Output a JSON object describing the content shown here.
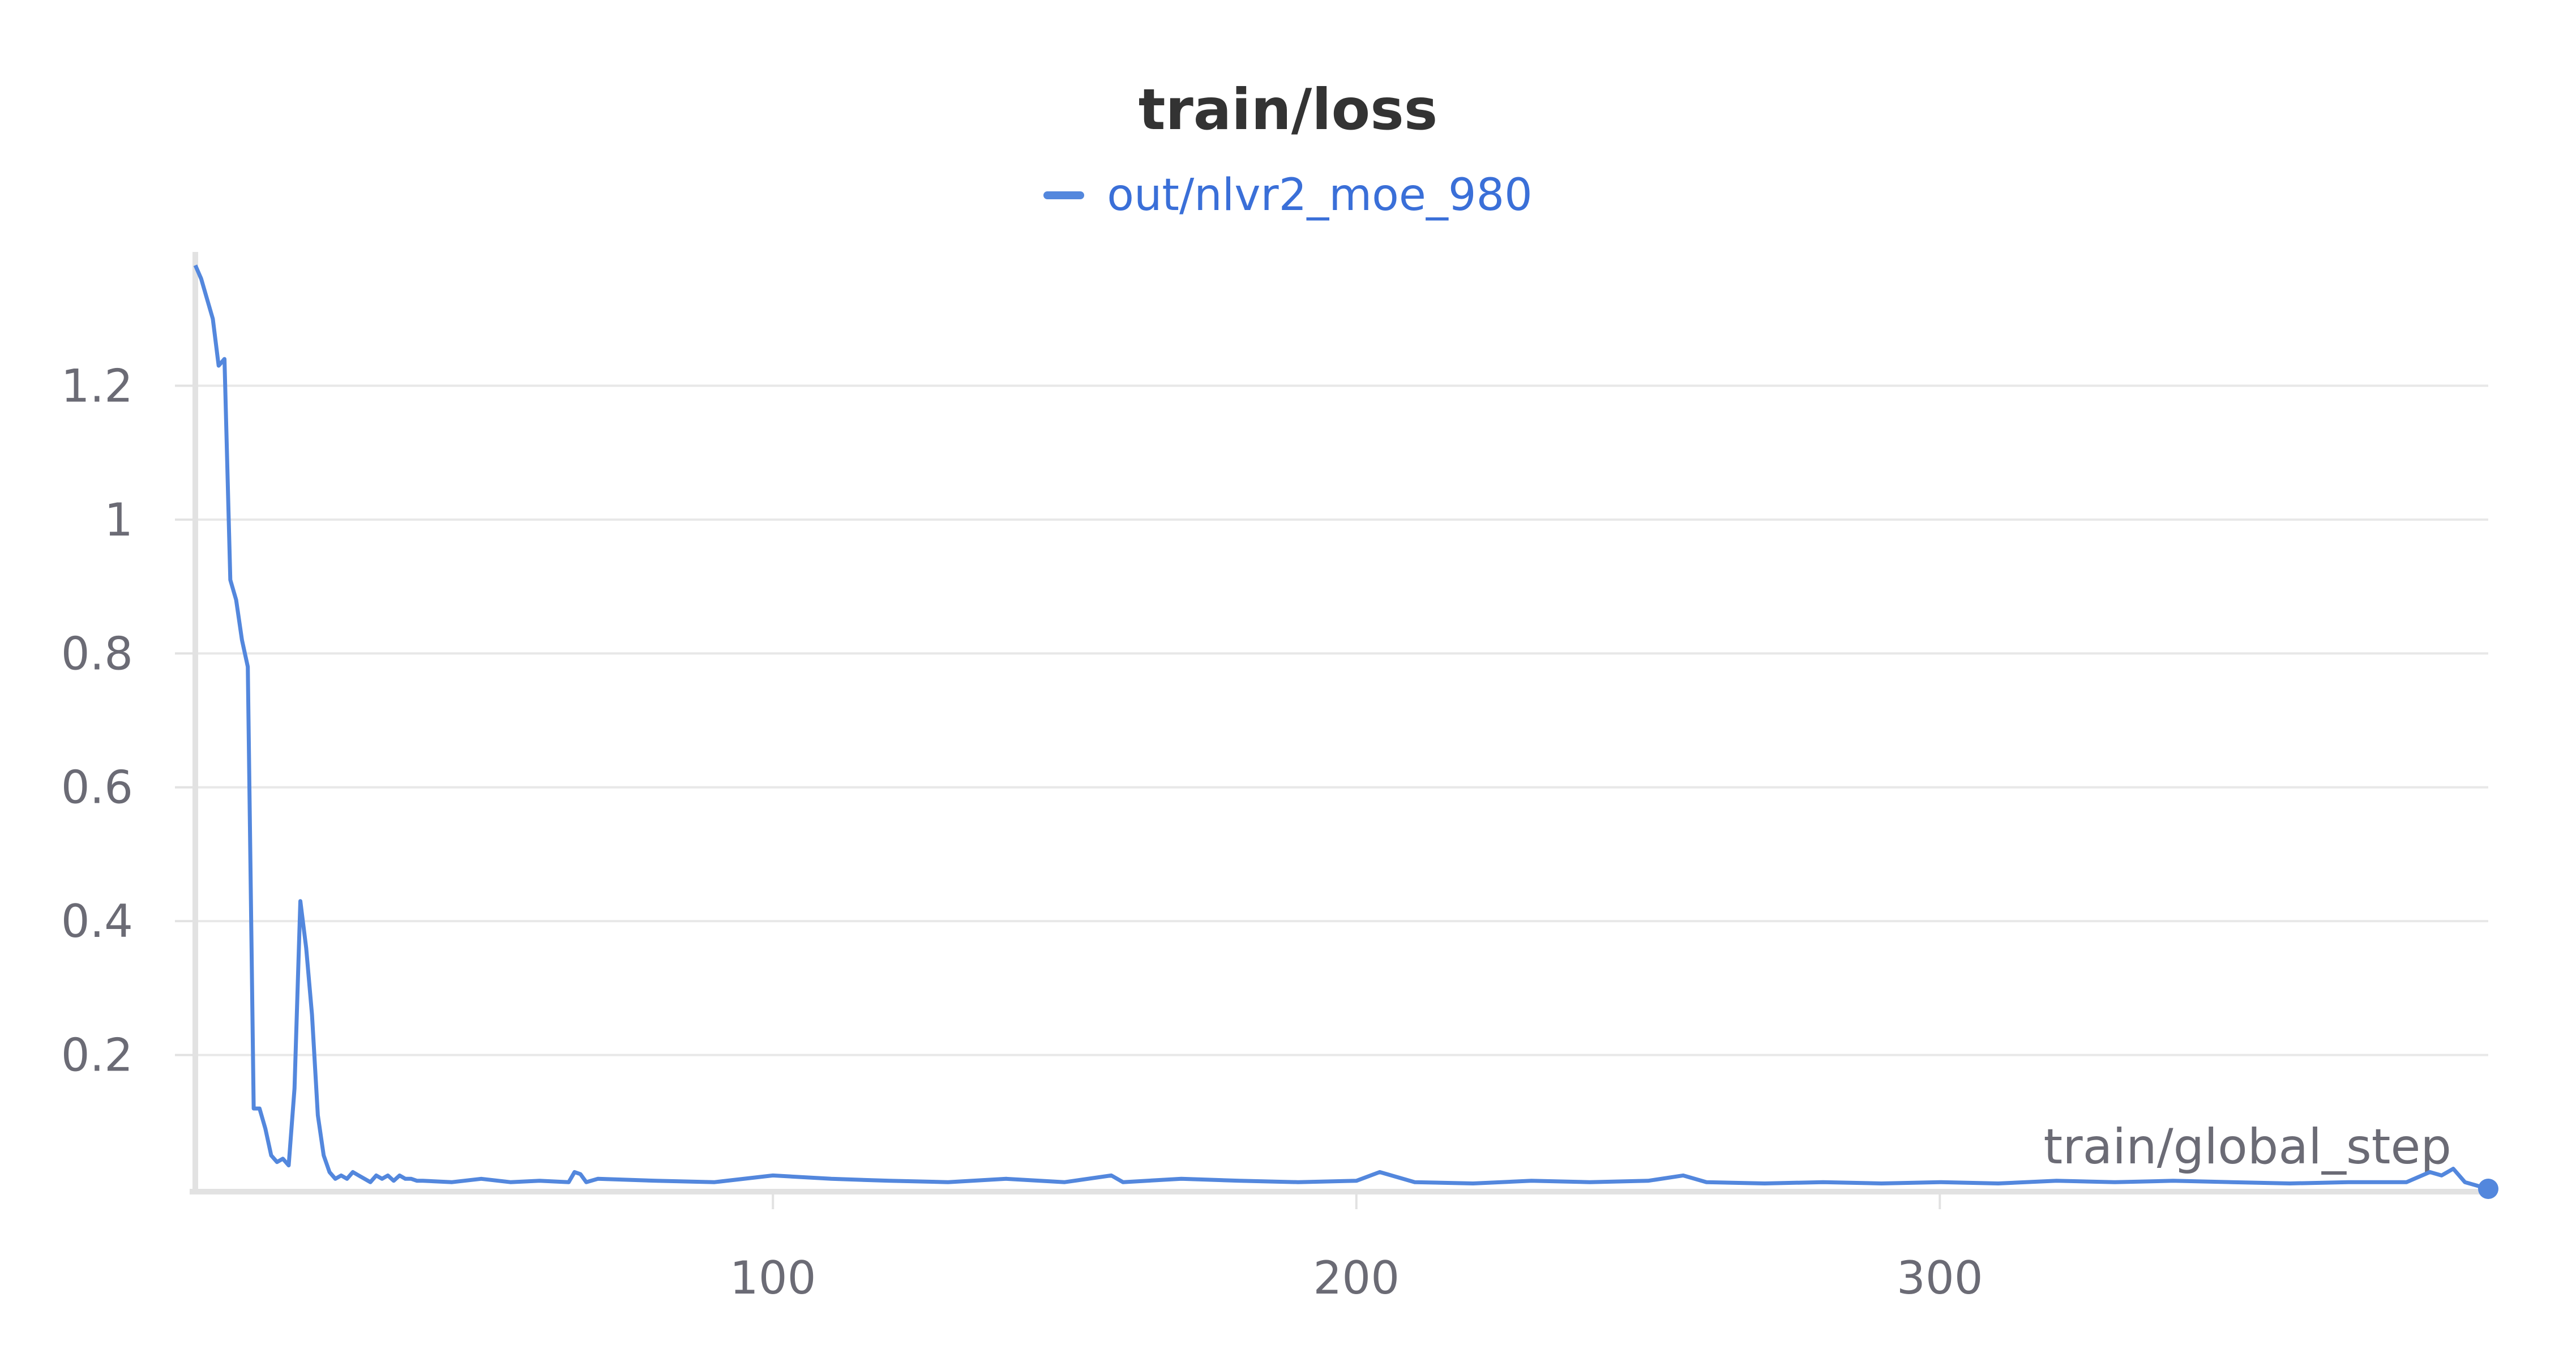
{
  "chart_data": {
    "type": "line",
    "title": "train/loss",
    "xlabel": "train/global_step",
    "ylabel": "",
    "xlim": [
      1,
      394
    ],
    "ylim": [
      0.0,
      1.4
    ],
    "xticks": [
      100,
      200,
      300
    ],
    "xtick_labels": [
      "100",
      "200",
      "300"
    ],
    "yticks": [
      0.2,
      0.4,
      0.6,
      0.8,
      1.0,
      1.2
    ],
    "ytick_labels": [
      "0.2",
      "0.4",
      "0.6",
      "0.8",
      "1",
      "1.2"
    ],
    "grid": true,
    "legend_position": "top-center",
    "series": [
      {
        "name": "out/nlvr2_moe_980",
        "color": "#5387dd",
        "x": [
          1,
          2,
          3,
          4,
          5,
          6,
          7,
          8,
          9,
          10,
          11,
          12,
          13,
          14,
          15,
          16,
          17,
          18,
          19,
          20,
          21,
          22,
          23,
          24,
          25,
          26,
          27,
          28,
          29,
          30,
          31,
          32,
          33,
          34,
          35,
          36,
          37,
          38,
          39,
          40,
          45,
          50,
          55,
          60,
          65,
          66,
          67,
          68,
          70,
          80,
          90,
          100,
          110,
          120,
          130,
          140,
          150,
          158,
          160,
          170,
          180,
          190,
          200,
          204,
          210,
          220,
          230,
          240,
          250,
          256,
          260,
          270,
          280,
          290,
          300,
          310,
          320,
          330,
          340,
          350,
          360,
          370,
          380,
          384,
          386,
          388,
          390,
          394
        ],
        "y": [
          1.38,
          1.36,
          1.33,
          1.3,
          1.23,
          1.24,
          0.91,
          0.88,
          0.82,
          0.78,
          0.12,
          0.12,
          0.09,
          0.05,
          0.04,
          0.045,
          0.035,
          0.15,
          0.43,
          0.36,
          0.26,
          0.11,
          0.05,
          0.025,
          0.015,
          0.02,
          0.015,
          0.025,
          0.02,
          0.015,
          0.01,
          0.02,
          0.015,
          0.02,
          0.012,
          0.02,
          0.015,
          0.015,
          0.012,
          0.012,
          0.01,
          0.015,
          0.01,
          0.012,
          0.01,
          0.025,
          0.022,
          0.01,
          0.015,
          0.012,
          0.01,
          0.02,
          0.015,
          0.012,
          0.01,
          0.015,
          0.01,
          0.02,
          0.01,
          0.015,
          0.012,
          0.01,
          0.012,
          0.025,
          0.01,
          0.008,
          0.012,
          0.01,
          0.012,
          0.02,
          0.01,
          0.008,
          0.01,
          0.008,
          0.01,
          0.008,
          0.012,
          0.01,
          0.012,
          0.01,
          0.008,
          0.01,
          0.01,
          0.025,
          0.02,
          0.03,
          0.01,
          0.0
        ]
      }
    ]
  }
}
